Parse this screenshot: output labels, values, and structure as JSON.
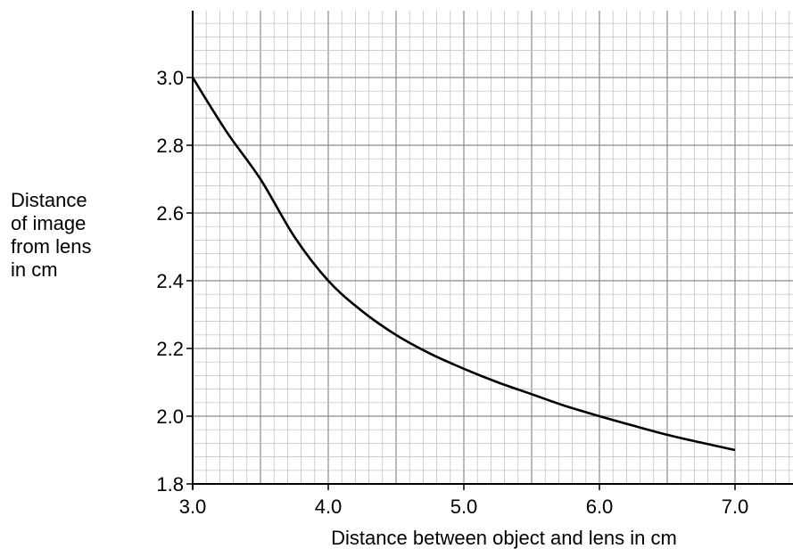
{
  "chart_data": {
    "type": "line",
    "title": "",
    "xlabel": "Distance between object and lens in cm",
    "ylabel_lines": [
      "Distance",
      "of image",
      "from lens",
      "in cm"
    ],
    "xlim": [
      3.0,
      7.45
    ],
    "ylim": [
      1.8,
      3.2
    ],
    "x_ticks": [
      "3.0",
      "4.0",
      "5.0",
      "6.0",
      "7.0"
    ],
    "y_ticks": [
      "1.8",
      "2.0",
      "2.2",
      "2.4",
      "2.6",
      "2.8",
      "3.0"
    ],
    "grid": true,
    "series": [
      {
        "x": [
          3.0,
          3.25,
          3.5,
          3.75,
          4.0,
          4.25,
          4.5,
          4.75,
          5.0,
          5.25,
          5.5,
          5.75,
          6.0,
          6.25,
          6.5,
          6.75,
          7.0
        ],
        "y": [
          3.0,
          2.84,
          2.7,
          2.53,
          2.4,
          2.31,
          2.24,
          2.185,
          2.14,
          2.1,
          2.065,
          2.03,
          2.0,
          1.972,
          1.945,
          1.922,
          1.9
        ],
        "color": "#000000"
      }
    ]
  }
}
